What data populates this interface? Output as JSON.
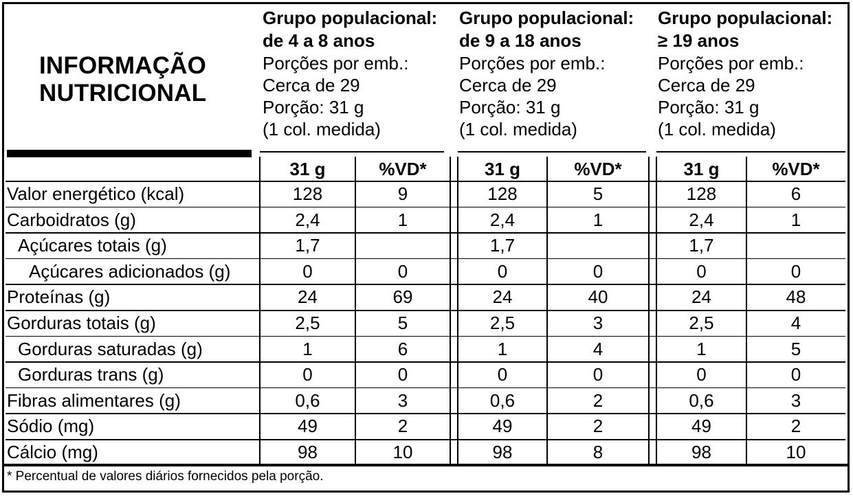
{
  "title": [
    "INFORMAÇÃO",
    "NUTRICIONAL"
  ],
  "groups": [
    {
      "title": [
        "Grupo populacional:",
        "de 4 a 8 anos"
      ],
      "servings_label": "Porções por emb.:",
      "servings_value": "Cerca de 29",
      "portion": "Porção: 31 g",
      "portion_measure": "(1 col. medida)"
    },
    {
      "title": [
        "Grupo populacional:",
        "de 9 a 18 anos"
      ],
      "servings_label": "Porções por emb.:",
      "servings_value": "Cerca de 29",
      "portion": "Porção: 31 g",
      "portion_measure": "(1 col. medida)"
    },
    {
      "title": [
        "Grupo populacional:",
        "≥ 19 anos"
      ],
      "servings_label": "Porções por emb.:",
      "servings_value": "Cerca de 29",
      "portion": "Porção: 31 g",
      "portion_measure": "(1 col. medida)"
    }
  ],
  "column_headers": [
    "31 g",
    "%VD*"
  ],
  "rows": [
    {
      "label": "Valor energético (kcal)",
      "indent": 0,
      "values": [
        "128",
        "9",
        "128",
        "5",
        "128",
        "6"
      ]
    },
    {
      "label": "Carboidratos (g)",
      "indent": 0,
      "values": [
        "2,4",
        "1",
        "2,4",
        "1",
        "2,4",
        "1"
      ]
    },
    {
      "label": "Açúcares totais (g)",
      "indent": 1,
      "values": [
        "1,7",
        "",
        "1,7",
        "",
        "1,7",
        ""
      ]
    },
    {
      "label": "Açúcares adicionados (g)",
      "indent": 2,
      "values": [
        "0",
        "0",
        "0",
        "0",
        "0",
        "0"
      ]
    },
    {
      "label": "Proteínas (g)",
      "indent": 0,
      "values": [
        "24",
        "69",
        "24",
        "40",
        "24",
        "48"
      ]
    },
    {
      "label": "Gorduras totais (g)",
      "indent": 0,
      "values": [
        "2,5",
        "5",
        "2,5",
        "3",
        "2,5",
        "4"
      ]
    },
    {
      "label": "Gorduras saturadas (g)",
      "indent": 1,
      "values": [
        "1",
        "6",
        "1",
        "4",
        "1",
        "5"
      ]
    },
    {
      "label": "Gorduras trans (g)",
      "indent": 1,
      "values": [
        "0",
        "0",
        "0",
        "0",
        "0",
        "0"
      ]
    },
    {
      "label": "Fibras alimentares (g)",
      "indent": 0,
      "values": [
        "0,6",
        "3",
        "0,6",
        "2",
        "0,6",
        "3"
      ]
    },
    {
      "label": "Sódio (mg)",
      "indent": 0,
      "values": [
        "49",
        "2",
        "49",
        "2",
        "49",
        "2"
      ]
    },
    {
      "label": "Cálcio (mg)",
      "indent": 0,
      "values": [
        "98",
        "10",
        "98",
        "8",
        "98",
        "10"
      ]
    }
  ],
  "footnote": "* Percentual de valores diários fornecidos pela porção."
}
